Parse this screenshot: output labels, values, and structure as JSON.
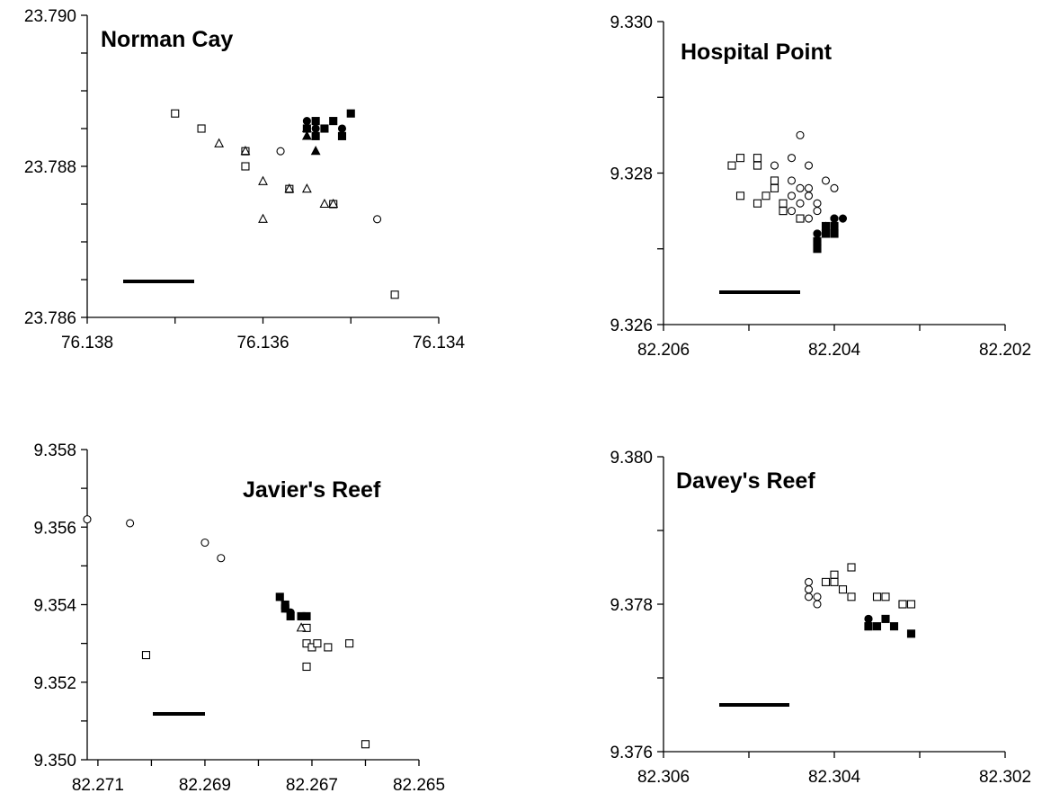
{
  "chart_data": [
    {
      "type": "scatter",
      "title": "Norman Cay",
      "xlim": [
        76.138,
        76.134
      ],
      "xticks": [
        76.138,
        76.136,
        76.134
      ],
      "xminor": [
        76.137,
        76.135
      ],
      "ylim": [
        23.786,
        23.79
      ],
      "yticks": [
        {
          "value": 23.79,
          "label": "23.790"
        },
        23.788,
        23.786
      ],
      "yminor": [
        23.7895,
        23.789,
        23.7885,
        23.7875,
        23.787,
        23.7865
      ],
      "series": [
        {
          "marker": "square",
          "filled": false,
          "color": "#000000",
          "x": [
            76.137,
            76.1367,
            76.1362,
            76.1362,
            76.1357,
            76.1352,
            76.1345
          ],
          "y": [
            23.7887,
            23.7885,
            23.7882,
            23.788,
            23.7877,
            23.7875,
            23.7863
          ]
        },
        {
          "marker": "triangle",
          "filled": false,
          "color": "#000000",
          "x": [
            76.1365,
            76.1362,
            76.136,
            76.136,
            76.1357,
            76.1355,
            76.1353,
            76.1352
          ],
          "y": [
            23.7883,
            23.7882,
            23.7878,
            23.7873,
            23.7877,
            23.7877,
            23.7875,
            23.7875
          ]
        },
        {
          "marker": "circle",
          "filled": false,
          "color": "#000000",
          "x": [
            76.1358,
            76.1347
          ],
          "y": [
            23.7882,
            23.7873
          ]
        },
        {
          "marker": "square",
          "filled": true,
          "color": "#000000",
          "x": [
            76.1355,
            76.1354,
            76.1353,
            76.1352,
            76.1351,
            76.135,
            76.1354
          ],
          "y": [
            23.7885,
            23.7886,
            23.7885,
            23.7886,
            23.7884,
            23.7887,
            23.7884
          ]
        },
        {
          "marker": "circle",
          "filled": true,
          "color": "#000000",
          "x": [
            76.1355,
            76.1354,
            76.1351
          ],
          "y": [
            23.7886,
            23.7885,
            23.7885
          ]
        },
        {
          "marker": "triangle",
          "filled": true,
          "color": "#000000",
          "x": [
            76.1355,
            76.1354,
            76.1355
          ],
          "y": [
            23.7884,
            23.7882,
            23.7885
          ]
        }
      ]
    },
    {
      "type": "scatter",
      "title": "Hospital Point",
      "xlim": [
        82.206,
        82.202
      ],
      "xticks": [
        82.206,
        82.204,
        82.202
      ],
      "xminor": [
        82.205,
        82.203
      ],
      "ylim": [
        9.326,
        9.33
      ],
      "yticks": [
        {
          "value": 9.33,
          "label": "9.330"
        },
        9.328,
        9.326
      ],
      "yminor": [
        9.329,
        9.327
      ],
      "series": [
        {
          "marker": "square",
          "filled": false,
          "color": "#000000",
          "x": [
            82.2052,
            82.2051,
            82.2049,
            82.2049,
            82.2051,
            82.2049,
            82.2048,
            82.2047,
            82.2047,
            82.2046,
            82.2046,
            82.2044
          ],
          "y": [
            9.3281,
            9.3282,
            9.3282,
            9.3281,
            9.3277,
            9.3276,
            9.3277,
            9.3278,
            9.3279,
            9.3276,
            9.3275,
            9.3274
          ]
        },
        {
          "marker": "circle",
          "filled": false,
          "color": "#000000",
          "x": [
            82.2044,
            82.2045,
            82.2047,
            82.2043,
            82.2045,
            82.2044,
            82.2043,
            82.2045,
            82.2043,
            82.2044,
            82.2042,
            82.2045,
            82.2042,
            82.2041,
            82.204,
            82.2043
          ],
          "y": [
            9.3285,
            9.3282,
            9.3281,
            9.3281,
            9.3279,
            9.3278,
            9.3278,
            9.3277,
            9.3277,
            9.3276,
            9.3276,
            9.3275,
            9.3275,
            9.3279,
            9.3278,
            9.3274
          ]
        },
        {
          "marker": "circle",
          "filled": true,
          "color": "#000000",
          "x": [
            82.2042,
            82.2042,
            82.2041,
            82.2041,
            82.2041,
            82.204,
            82.204,
            82.204,
            82.2039,
            82.204,
            82.204,
            82.2042
          ],
          "y": [
            9.3272,
            9.3272,
            9.3272,
            9.3273,
            9.3273,
            9.3274,
            9.3274,
            9.3274,
            9.3274,
            9.3273,
            9.3273,
            9.3271
          ]
        },
        {
          "marker": "square",
          "filled": true,
          "color": "#000000",
          "x": [
            82.2042,
            82.2042,
            82.2041,
            82.2041,
            82.204,
            82.204,
            82.204,
            82.2041
          ],
          "y": [
            9.327,
            9.3271,
            9.3272,
            9.3273,
            9.3272,
            9.3273,
            9.3272,
            9.3272
          ]
        }
      ]
    },
    {
      "type": "scatter",
      "title": "Javier's Reef",
      "xlim": [
        82.2712,
        82.265
      ],
      "xticks": [
        82.271,
        82.269,
        82.267,
        82.265
      ],
      "xminor": [
        82.27,
        82.268,
        82.266
      ],
      "ylim": [
        9.35,
        9.358
      ],
      "yticks": [
        9.358,
        9.356,
        9.354,
        9.352,
        {
          "value": 9.35,
          "label": "9.350"
        }
      ],
      "yminor": [
        9.357,
        9.355,
        9.353,
        9.351
      ],
      "series": [
        {
          "marker": "circle",
          "filled": false,
          "color": "#000000",
          "x": [
            82.2712,
            82.2704,
            82.269,
            82.2687
          ],
          "y": [
            9.3562,
            9.3561,
            9.3556,
            9.3552
          ]
        },
        {
          "marker": "square",
          "filled": false,
          "color": "#000000",
          "x": [
            82.2701,
            82.2671,
            82.2671,
            82.2671,
            82.267,
            82.2669,
            82.2667,
            82.2663,
            82.266
          ],
          "y": [
            9.3527,
            9.3534,
            9.353,
            9.3524,
            9.3529,
            9.353,
            9.3529,
            9.353,
            9.3504
          ]
        },
        {
          "marker": "triangle",
          "filled": false,
          "color": "#000000",
          "x": [
            82.2672
          ],
          "y": [
            9.3534
          ]
        },
        {
          "marker": "square",
          "filled": true,
          "color": "#000000",
          "x": [
            82.2676,
            82.2675,
            82.2675,
            82.2674,
            82.2672,
            82.2671
          ],
          "y": [
            9.3542,
            9.354,
            9.3539,
            9.3537,
            9.3537,
            9.3537
          ]
        },
        {
          "marker": "circle",
          "filled": true,
          "color": "#000000",
          "x": [
            82.2675,
            82.2674
          ],
          "y": [
            9.3539,
            9.3538
          ]
        }
      ]
    },
    {
      "type": "scatter",
      "title": "Davey's Reef",
      "xlim": [
        82.306,
        82.302
      ],
      "xticks": [
        82.306,
        82.304,
        82.302
      ],
      "xminor": [
        82.305,
        82.303
      ],
      "ylim": [
        9.376,
        9.38
      ],
      "yticks": [
        {
          "value": 9.38,
          "label": "9.380"
        },
        9.378,
        9.376
      ],
      "yminor": [
        9.379,
        9.377
      ],
      "series": [
        {
          "marker": "circle",
          "filled": false,
          "color": "#000000",
          "x": [
            82.3043,
            82.3043,
            82.3043,
            82.3042,
            82.3042
          ],
          "y": [
            9.3781,
            9.3782,
            9.3783,
            9.378,
            9.3781
          ]
        },
        {
          "marker": "square",
          "filled": false,
          "color": "#000000",
          "x": [
            82.3041,
            82.304,
            82.304,
            82.3039,
            82.3038,
            82.3038,
            82.3035,
            82.3034,
            82.3032,
            82.3032,
            82.3031
          ],
          "y": [
            9.3783,
            9.3783,
            9.3784,
            9.3782,
            9.3785,
            9.3781,
            9.3781,
            9.3781,
            9.378,
            9.378,
            9.378
          ]
        },
        {
          "marker": "circle",
          "filled": true,
          "color": "#000000",
          "x": [
            82.3036,
            82.3036
          ],
          "y": [
            9.3778,
            9.3778
          ]
        },
        {
          "marker": "square",
          "filled": true,
          "color": "#000000",
          "x": [
            82.3036,
            82.3036,
            82.3035,
            82.3034,
            82.3033,
            82.3031
          ],
          "y": [
            9.3777,
            9.3777,
            9.3777,
            9.3778,
            9.3777,
            9.3776
          ]
        }
      ]
    }
  ]
}
